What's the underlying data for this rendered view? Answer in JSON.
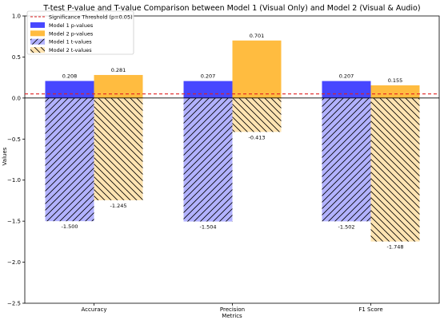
{
  "chart_data": {
    "type": "bar",
    "title": "T-test P-value and T-value Comparison between Model 1 (Visual Only) and Model 2 (Visual & Audio)",
    "xlabel": "Metrics",
    "ylabel": "Values",
    "ylim": [
      -2.5,
      1.0
    ],
    "yticks": [
      "−2.5",
      "−2.0",
      "−1.5",
      "−1.0",
      "−0.5",
      "0.0",
      "0.5",
      "1.0"
    ],
    "categories": [
      "Accuracy",
      "Precision",
      "F1 Score"
    ],
    "series": [
      {
        "name": "Model 1 p-values",
        "kind": "p",
        "color": "#0000ff",
        "values": [
          0.208,
          0.207,
          0.207
        ],
        "labels": [
          "0.208",
          "0.207",
          "0.207"
        ]
      },
      {
        "name": "Model 2 p-values",
        "kind": "p",
        "color": "#ffa500",
        "values": [
          0.281,
          0.701,
          0.155
        ],
        "labels": [
          "0.281",
          "0.701",
          "0.155"
        ]
      },
      {
        "name": "Model 1 t-values",
        "kind": "t",
        "color": "#0000ff",
        "hatch": "forward",
        "values": [
          -1.5,
          -1.504,
          -1.502
        ],
        "labels": [
          "-1.500",
          "-1.504",
          "-1.502"
        ]
      },
      {
        "name": "Model 2 t-values",
        "kind": "t",
        "color": "#ffa500",
        "hatch": "backward",
        "values": [
          -1.245,
          -0.413,
          -1.748
        ],
        "labels": [
          "-1.245",
          "-0.413",
          "-1.748"
        ]
      }
    ],
    "threshold": {
      "value": 0.05,
      "label": "Significance Threshold (p=0.05)",
      "color": "#e02020"
    },
    "zero_line": true,
    "grid": false,
    "legend_position": "top-left"
  }
}
